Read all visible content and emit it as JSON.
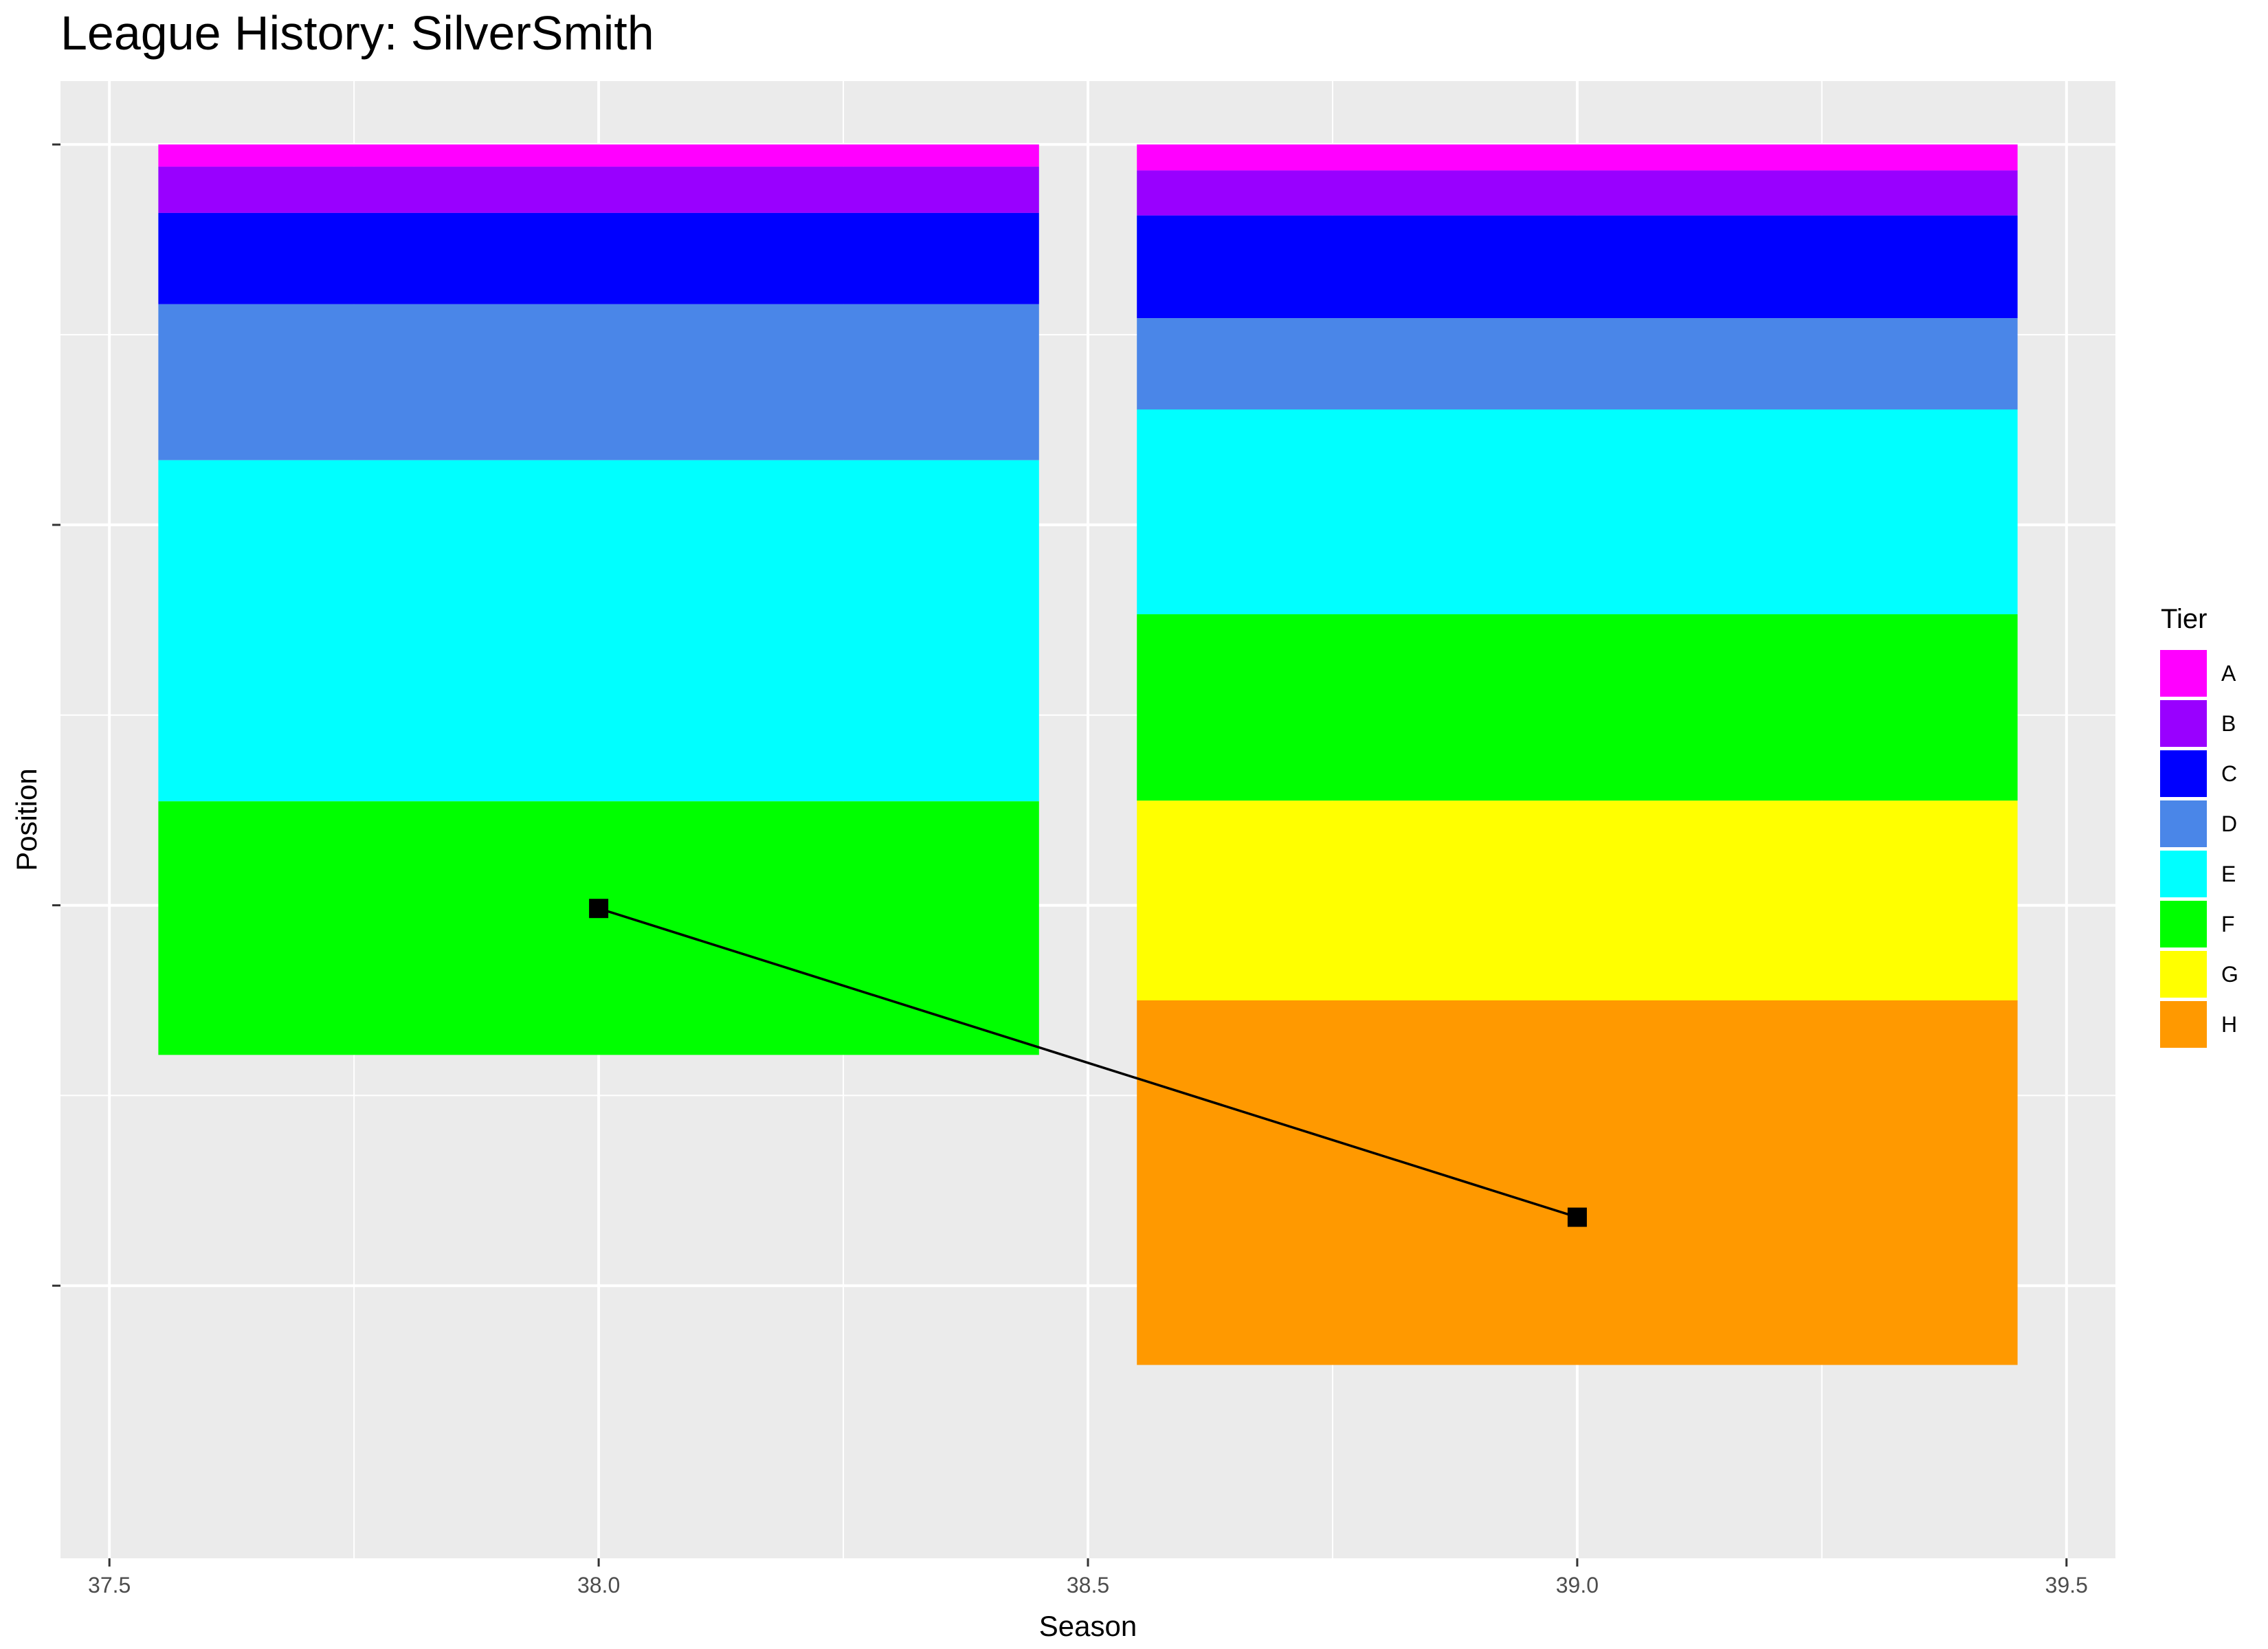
{
  "chart_data": {
    "type": "bar",
    "title": "League History: SilverSmith",
    "xlabel": "Season",
    "ylabel": "Position",
    "xlim": [
      37.45,
      39.55
    ],
    "ylim": [
      233,
      0
    ],
    "x_ticks": [
      37.5,
      38.0,
      38.5,
      39.0,
      39.5
    ],
    "x_tick_labels": [
      "37.5",
      "38.0",
      "38.5",
      "39.0",
      "39.5"
    ],
    "y_ticks": [
      10,
      70,
      130,
      190
    ],
    "y_tick_labels": [
      "",
      "",
      "",
      ""
    ],
    "grid": true,
    "legend_position": "right",
    "legend_title": "Tier",
    "tiers": [
      {
        "name": "A",
        "color": "#FF00FF"
      },
      {
        "name": "B",
        "color": "#9900FF"
      },
      {
        "name": "C",
        "color": "#0000FF"
      },
      {
        "name": "D",
        "color": "#4A86E8"
      },
      {
        "name": "E",
        "color": "#00FFFF"
      },
      {
        "name": "F",
        "color": "#00FF00"
      },
      {
        "name": "G",
        "color": "#FFFF00"
      },
      {
        "name": "H",
        "color": "#FF9900"
      }
    ],
    "bar_width": 0.9,
    "seasons": [
      {
        "season": 38,
        "tiers": [
          {
            "tier": "A",
            "start": 10,
            "end": 13.5
          },
          {
            "tier": "B",
            "start": 13.5,
            "end": 20.8
          },
          {
            "tier": "C",
            "start": 20.8,
            "end": 35.2
          },
          {
            "tier": "D",
            "start": 35.2,
            "end": 59.8
          },
          {
            "tier": "E",
            "start": 59.8,
            "end": 113.6
          },
          {
            "tier": "F",
            "start": 113.6,
            "end": 153.6
          }
        ]
      },
      {
        "season": 39,
        "tiers": [
          {
            "tier": "A",
            "start": 10,
            "end": 14.1
          },
          {
            "tier": "B",
            "start": 14.1,
            "end": 21.2
          },
          {
            "tier": "C",
            "start": 21.2,
            "end": 37.4
          },
          {
            "tier": "D",
            "start": 37.4,
            "end": 51.8
          },
          {
            "tier": "E",
            "start": 51.8,
            "end": 84.1
          },
          {
            "tier": "F",
            "start": 84.1,
            "end": 113.5
          },
          {
            "tier": "G",
            "start": 113.5,
            "end": 145.0
          },
          {
            "tier": "H",
            "start": 145.0,
            "end": 202.5
          }
        ]
      }
    ],
    "position_series": {
      "x": [
        38,
        39
      ],
      "y": [
        130.5,
        179.2
      ],
      "color": "#000000",
      "marker": "square"
    }
  }
}
